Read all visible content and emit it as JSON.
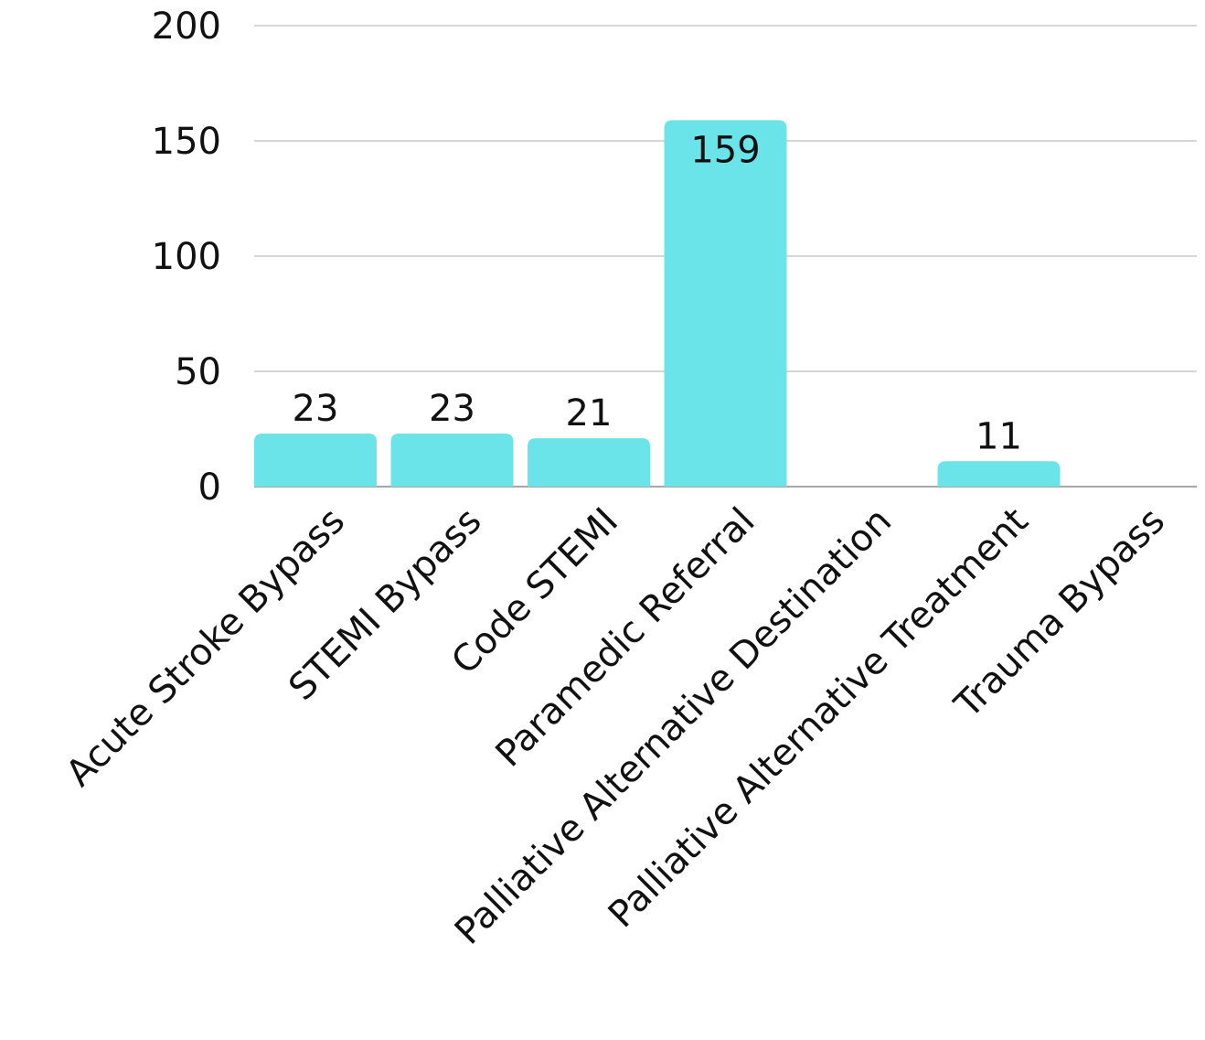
{
  "chart_data": {
    "type": "bar",
    "categories": [
      "Acute Stroke Bypass",
      "STEMI Bypass",
      "Code STEMI",
      "Paramedic Referral",
      "Palliative Alternative Destination",
      "Palliative Alternative Treatment",
      "Trauma Bypass"
    ],
    "values": [
      23,
      23,
      21,
      159,
      0,
      11,
      0
    ],
    "data_labels": [
      "23",
      "23",
      "21",
      "159",
      "",
      "11",
      ""
    ],
    "y_ticks": [
      0,
      50,
      100,
      150,
      200
    ],
    "ylim": [
      0,
      200
    ],
    "grid": true,
    "bar_color": "#6ae4e8",
    "title": "",
    "xlabel": "",
    "ylabel": ""
  }
}
